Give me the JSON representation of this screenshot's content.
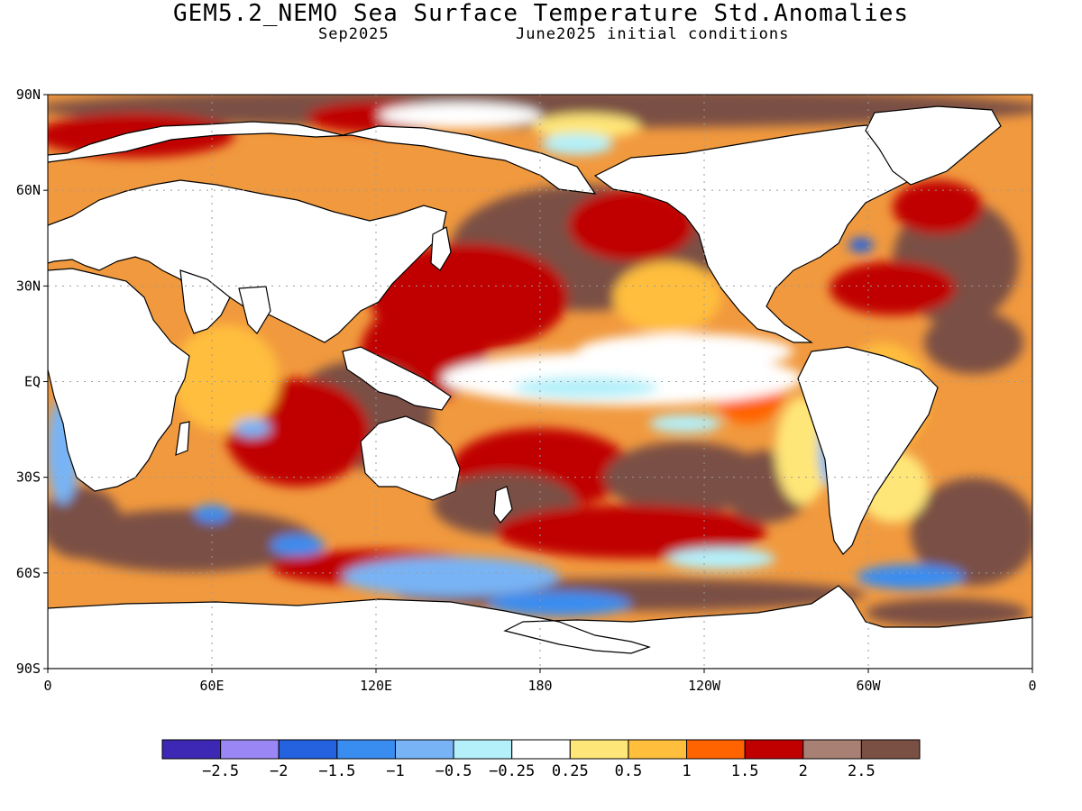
{
  "title": "GEM5.2_NEMO Sea Surface Temperature Std.Anomalies",
  "subtitle_left": "Sep2025",
  "subtitle_right": "June2025 initial conditions",
  "map": {
    "projection": "equirectangular",
    "lon_range": [
      0,
      360
    ],
    "lat_range": [
      -90,
      90
    ],
    "lat_ticks": [
      {
        "value": 90,
        "label": "90N"
      },
      {
        "value": 60,
        "label": "60N"
      },
      {
        "value": 30,
        "label": "30N"
      },
      {
        "value": 0,
        "label": "EQ"
      },
      {
        "value": -30,
        "label": "30S"
      },
      {
        "value": -60,
        "label": "60S"
      },
      {
        "value": -90,
        "label": "90S"
      }
    ],
    "lon_ticks": [
      {
        "value": 0,
        "label": "0"
      },
      {
        "value": 60,
        "label": "60E"
      },
      {
        "value": 120,
        "label": "120E"
      },
      {
        "value": 180,
        "label": "180"
      },
      {
        "value": 240,
        "label": "120W"
      },
      {
        "value": 300,
        "label": "60W"
      },
      {
        "value": 360,
        "label": "0"
      }
    ],
    "gridlines": true,
    "ocean_color": "#f1993e",
    "land_color": "#ffffff"
  },
  "colorbar": {
    "colors": [
      "#3c28b4",
      "#9a87f5",
      "#2462e0",
      "#3a8df0",
      "#78b4f5",
      "#b4f0fa",
      "#ffffff",
      "#ffe678",
      "#ffbe3c",
      "#ff6400",
      "#c00000",
      "#a98074",
      "#7a5044"
    ],
    "labels": [
      "−2.5",
      "−2",
      "−1.5",
      "−1",
      "−0.5",
      "−0.25",
      "0.25",
      "0.5",
      "1",
      "1.5",
      "2",
      "2.5"
    ]
  }
}
